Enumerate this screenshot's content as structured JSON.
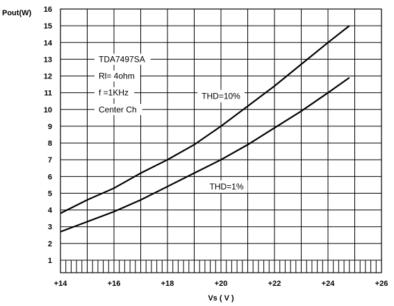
{
  "chart_data": {
    "type": "line",
    "ylabel": "Pout(W)",
    "xlabel": "Vs ( V )",
    "xlim": [
      14,
      26
    ],
    "ylim": [
      1,
      16
    ],
    "x_ticks": [
      14,
      16,
      18,
      20,
      22,
      24,
      26
    ],
    "x_tick_labels": [
      "+14",
      "+16",
      "+18",
      "+20",
      "+22",
      "+24",
      "+26"
    ],
    "y_ticks": [
      1,
      2,
      3,
      4,
      5,
      6,
      7,
      8,
      9,
      10,
      11,
      12,
      13,
      14,
      15,
      16
    ],
    "grid": true,
    "annotations": [
      "TDA7497SA",
      "Rl= 4ohm",
      "f =1KHz",
      "Center Ch"
    ],
    "series": [
      {
        "name": "THD=10%",
        "x": [
          14,
          15,
          16,
          17,
          18,
          19,
          20,
          21,
          22,
          23,
          24,
          24.8
        ],
        "y": [
          3.8,
          4.6,
          5.3,
          6.2,
          7.0,
          7.9,
          9.0,
          10.2,
          11.4,
          12.7,
          14.0,
          15.0
        ]
      },
      {
        "name": "THD=1%",
        "x": [
          14,
          15,
          16,
          17,
          18,
          19,
          20,
          21,
          22,
          23,
          24,
          24.8
        ],
        "y": [
          2.7,
          3.3,
          3.9,
          4.6,
          5.4,
          6.2,
          7.0,
          7.9,
          8.9,
          9.9,
          11.0,
          11.9
        ]
      }
    ]
  }
}
